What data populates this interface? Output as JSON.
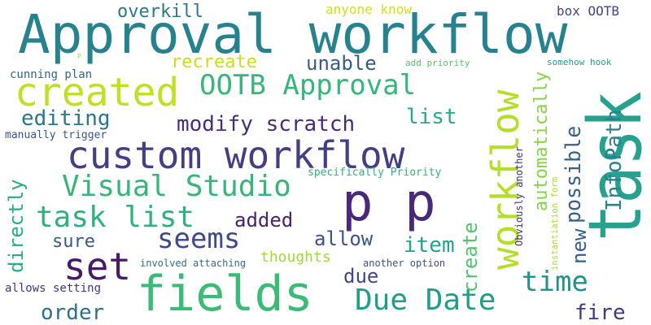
{
  "words": [
    {
      "text": "Approval workflow",
      "color": "#26828e"
    },
    {
      "text": "task",
      "color": "#25a18e"
    },
    {
      "text": "fields",
      "color": "#3bbb75"
    },
    {
      "text": "custom workflow",
      "color": "#433e85"
    },
    {
      "text": "p p",
      "color": "#482878"
    },
    {
      "text": "created",
      "color": "#c2df23"
    },
    {
      "text": "workflow",
      "color": "#b5de2b"
    },
    {
      "text": "set",
      "color": "#48186a"
    },
    {
      "text": "Visual Studio",
      "color": "#35b779"
    },
    {
      "text": "OOTB Approval",
      "color": "#35b779"
    },
    {
      "text": "Due Date",
      "color": "#1f9e89"
    },
    {
      "text": "task list",
      "color": "#2db27d"
    },
    {
      "text": "seems",
      "color": "#3e4a89"
    },
    {
      "text": "time",
      "color": "#21918c"
    },
    {
      "text": "InfoPath",
      "color": "#26828e"
    },
    {
      "text": "possible",
      "color": "#34618d"
    },
    {
      "text": "automatically",
      "color": "#86d549"
    },
    {
      "text": "modify scratch",
      "color": "#472c7a"
    },
    {
      "text": "editing",
      "color": "#2a768e"
    },
    {
      "text": "directly",
      "color": "#28ae80"
    },
    {
      "text": "recreate",
      "color": "#c8e020"
    },
    {
      "text": "unable",
      "color": "#365c8d"
    },
    {
      "text": "new",
      "color": "#355f8d"
    },
    {
      "text": "create",
      "color": "#52c569"
    },
    {
      "text": "fire",
      "color": "#443983"
    },
    {
      "text": "order",
      "color": "#2d708e"
    },
    {
      "text": "item",
      "color": "#20a386"
    },
    {
      "text": "allow",
      "color": "#3b528b"
    },
    {
      "text": "added",
      "color": "#482173"
    },
    {
      "text": "sure",
      "color": "#38598c"
    },
    {
      "text": "list",
      "color": "#25ab82"
    },
    {
      "text": "due",
      "color": "#404688"
    },
    {
      "text": "overkill",
      "color": "#2a788e"
    },
    {
      "text": "thoughts",
      "color": "#a0da39"
    },
    {
      "text": "box OOTB",
      "color": "#404688"
    },
    {
      "text": "anyone know",
      "color": "#d0e11c"
    },
    {
      "text": "cunning plan",
      "color": "#31688e"
    },
    {
      "text": "specifically Priority",
      "color": "#2fb47c"
    },
    {
      "text": "manually trigger",
      "color": "#3a548c"
    },
    {
      "text": "allows setting",
      "color": "#46337f"
    },
    {
      "text": "involved attaching",
      "color": "#2e6f8e"
    },
    {
      "text": "another option",
      "color": "#3b518b"
    },
    {
      "text": "Obviously another",
      "color": "#46307e"
    },
    {
      "text": "instantiation form",
      "color": "#a8db34"
    },
    {
      "text": "add priority",
      "color": "#50c46a"
    },
    {
      "text": "somehow hook",
      "color": "#1fa088"
    },
    {
      "text": "P",
      "color": "#95d840"
    }
  ]
}
